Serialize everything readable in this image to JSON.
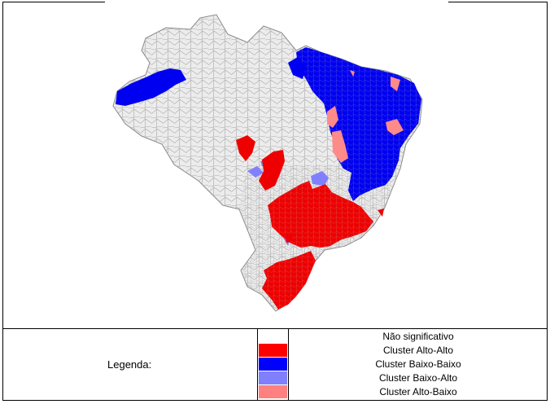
{
  "legend": {
    "title": "Legenda:",
    "items": [
      {
        "label": "Não significativo",
        "color": "#ffffff"
      },
      {
        "label": "Cluster Alto-Alto",
        "color": "#ff0000"
      },
      {
        "label": "Cluster Baixo-Baixo",
        "color": "#0000ff"
      },
      {
        "label": "Cluster Baixo-Alto",
        "color": "#8080ff"
      },
      {
        "label": "Cluster Alto-Baixo",
        "color": "#ff8080"
      }
    ]
  },
  "map": {
    "base_color": "#ececec",
    "border_color": "#a0a0a0"
  }
}
